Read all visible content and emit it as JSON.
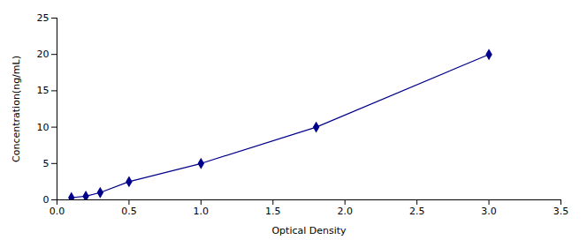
{
  "chart_data": {
    "type": "line",
    "xlabel": "Optical Density",
    "ylabel": "Concentration(ng/mL)",
    "x": [
      0.1,
      0.2,
      0.3,
      0.5,
      1.0,
      1.8,
      3.0
    ],
    "values": [
      0.3,
      0.5,
      1.0,
      2.5,
      5.0,
      10.0,
      20.0
    ],
    "xlim": [
      0,
      3.5
    ],
    "ylim": [
      0,
      25
    ],
    "xticks": [
      {
        "value": 0,
        "label": "0.0"
      },
      0.5,
      {
        "value": 1,
        "label": "1.0"
      },
      1.5,
      {
        "value": 2,
        "label": "2.0"
      },
      2.5,
      {
        "value": 3,
        "label": "3.0"
      },
      3.5
    ],
    "yticks": [
      0,
      5,
      10,
      15,
      20,
      25
    ],
    "color": "#00008B",
    "marker": "diamond",
    "line_style": "solid",
    "grid": false
  }
}
